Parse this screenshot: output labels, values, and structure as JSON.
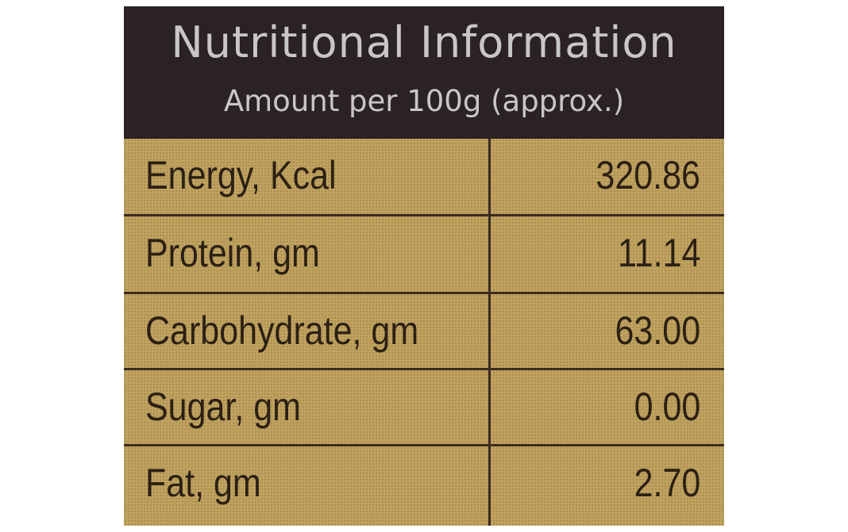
{
  "header": {
    "title": "Nutritional Information",
    "subtitle": "Amount per 100g (approx.)"
  },
  "nutrients": [
    {
      "name": "Energy, Kcal",
      "value": "320.86"
    },
    {
      "name": "Protein, gm",
      "value": "11.14"
    },
    {
      "name": "Carbohydrate, gm",
      "value": "63.00"
    },
    {
      "name": "Sugar, gm",
      "value": "0.00"
    },
    {
      "name": "Fat, gm",
      "value": "2.70"
    }
  ],
  "colors": {
    "header_background": "#2a2223",
    "header_text": "#c9c6c9",
    "table_background": "#c0a260",
    "rule_lines": "#3a2c20",
    "table_text": "#2b2014"
  }
}
